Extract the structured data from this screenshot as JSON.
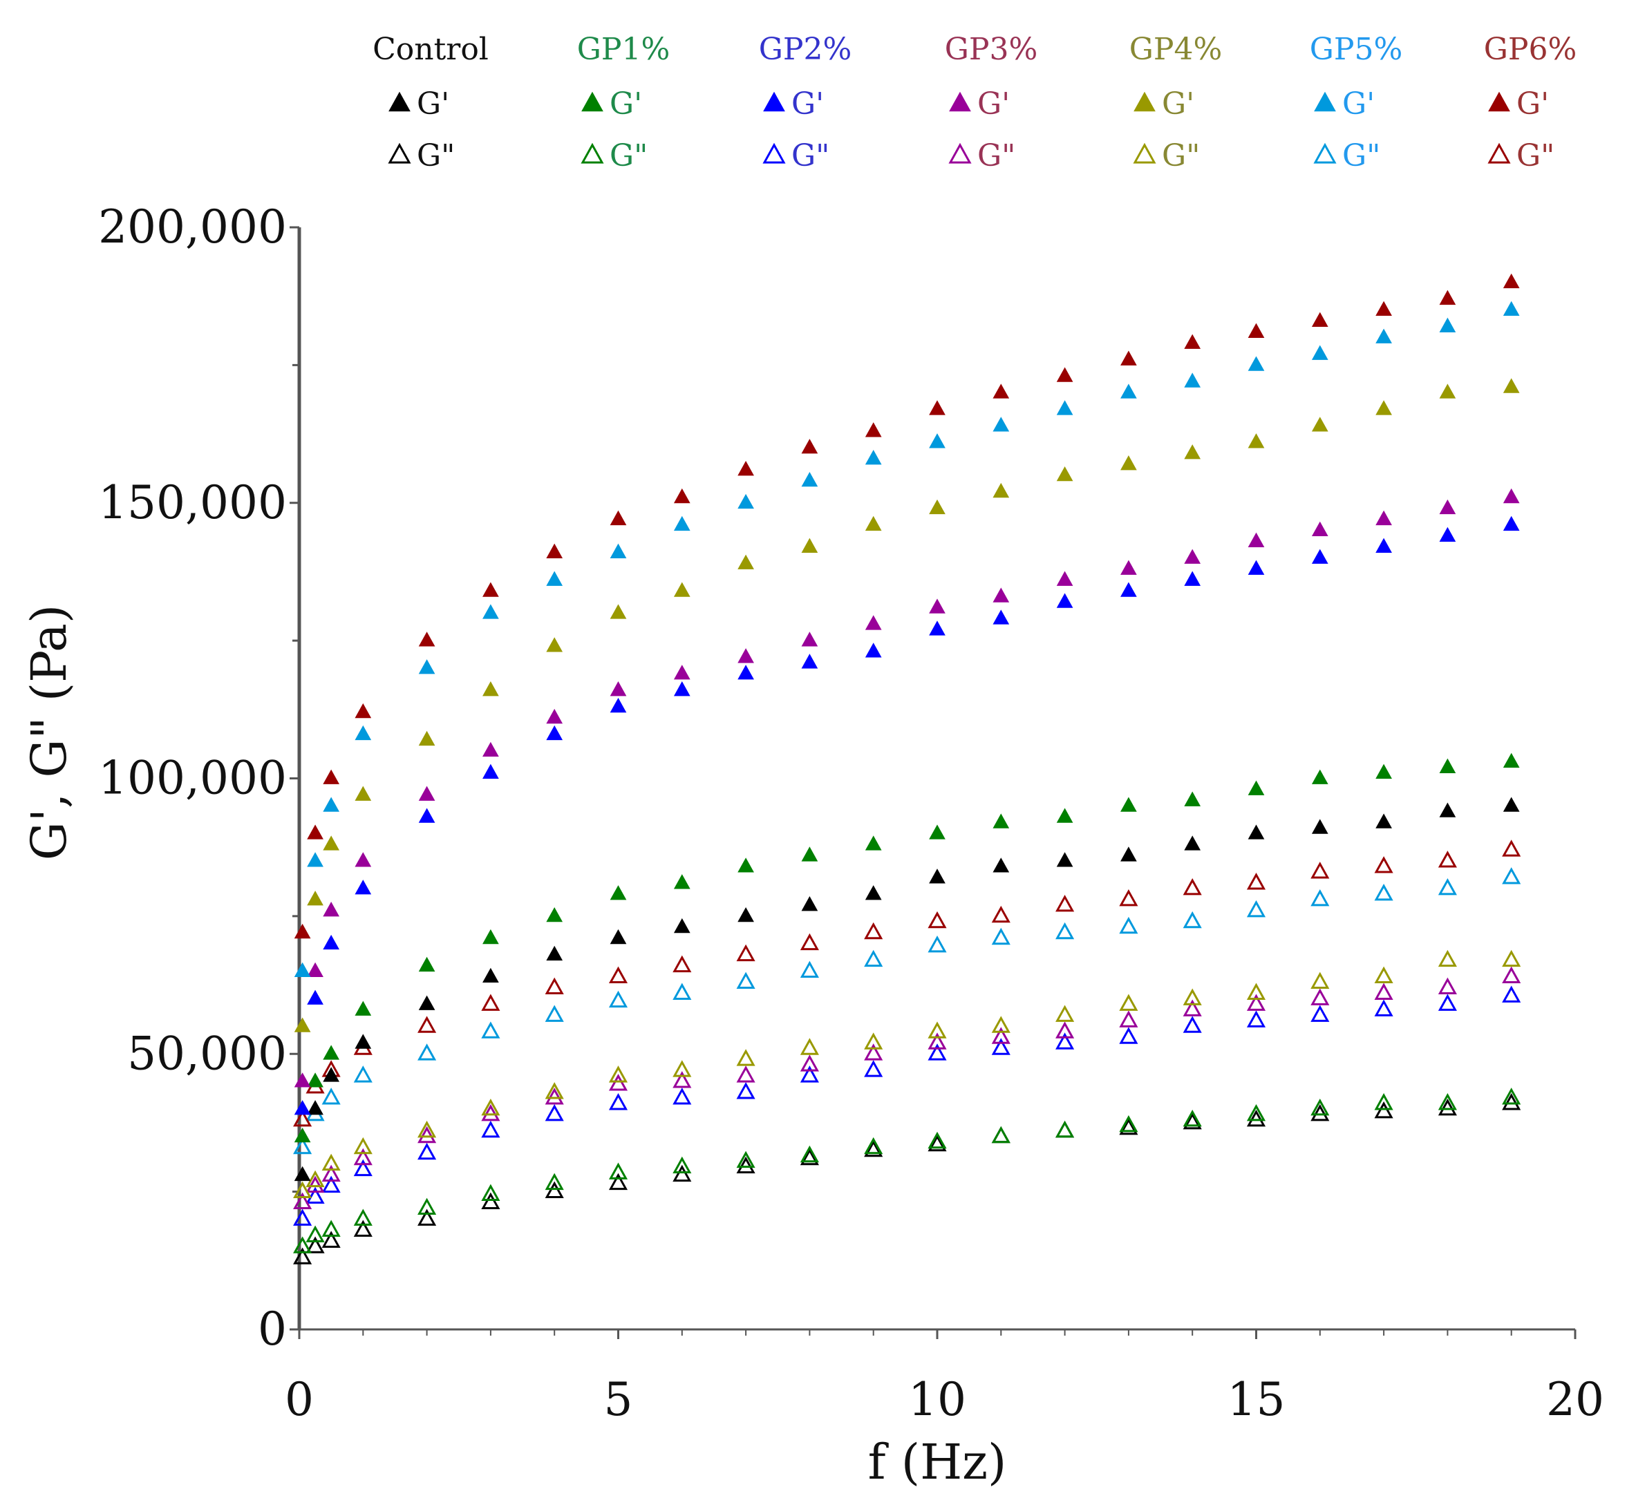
{
  "chart_data": {
    "type": "scatter",
    "title": "",
    "xlabel": "f (Hz)",
    "ylabel": "G', G\" (Pa)",
    "xlim": [
      0,
      20
    ],
    "ylim": [
      0,
      200000
    ],
    "x_ticks": [
      0,
      5,
      10,
      15,
      20
    ],
    "x_tick_labels": [
      "0",
      "5",
      "10",
      "15",
      "20"
    ],
    "y_ticks": [
      0,
      50000,
      100000,
      150000,
      200000
    ],
    "y_tick_labels": [
      "0",
      "50,000",
      "100,000",
      "150,000",
      "200,000"
    ],
    "grid": false,
    "legend_position": "top",
    "x": [
      0.05,
      0.25,
      0.5,
      1,
      2,
      3,
      4,
      5,
      6,
      7,
      8,
      9,
      10,
      11,
      12,
      13,
      14,
      15,
      16,
      17,
      18,
      19
    ],
    "value_scale": 1000,
    "groups": [
      {
        "name": "Control",
        "color": "#000000",
        "text_color": "#111111",
        "G1_label": "G'",
        "G2_label": "G\"",
        "G1": [
          28,
          40,
          46,
          52,
          59,
          64,
          68,
          71,
          73,
          75,
          77,
          79,
          82,
          84,
          85,
          86,
          88,
          90,
          91,
          92,
          94,
          95
        ],
        "G2": [
          13,
          15,
          16,
          18,
          20,
          23,
          25,
          26.5,
          28,
          29.5,
          31,
          32.5,
          33.5,
          35,
          36,
          36.5,
          37.5,
          38,
          39,
          39.5,
          40,
          41
        ]
      },
      {
        "name": "GP1%",
        "color": "#008000",
        "text_color": "#1e8a4a",
        "G1_label": "G'",
        "G2_label": "G\"",
        "G1": [
          35,
          45,
          50,
          58,
          66,
          71,
          75,
          79,
          81,
          84,
          86,
          88,
          90,
          92,
          93,
          95,
          96,
          98,
          100,
          101,
          102,
          103
        ],
        "G2": [
          15,
          17,
          18,
          20,
          22,
          24.5,
          26.5,
          28.4,
          29.5,
          30.5,
          31.5,
          33,
          34,
          35,
          36,
          37,
          38,
          39,
          40,
          41,
          41,
          42
        ]
      },
      {
        "name": "GP2%",
        "color": "#0000ff",
        "text_color": "#3333cc",
        "G1_label": "G'",
        "G2_label": "G\"",
        "G1": [
          40,
          60,
          70,
          80,
          93,
          101,
          108,
          113,
          116,
          119,
          121,
          123,
          127,
          129,
          132,
          134,
          136,
          138,
          140,
          142,
          144,
          146
        ],
        "G2": [
          20,
          24,
          26,
          29,
          32,
          36,
          39,
          41,
          42,
          43,
          46,
          47,
          50,
          51,
          52,
          53,
          55,
          56,
          57,
          58,
          59,
          60.5
        ]
      },
      {
        "name": "GP3%",
        "color": "#990099",
        "text_color": "#993355",
        "G1_label": "G'",
        "G2_label": "G\"",
        "G1": [
          45,
          65,
          76,
          85,
          97,
          105,
          111,
          116,
          119,
          122,
          125,
          128,
          131,
          133,
          136,
          138,
          140,
          143,
          145,
          147,
          149,
          151
        ],
        "G2": [
          23,
          26,
          28,
          31,
          35,
          39,
          42,
          44.5,
          45,
          46,
          48,
          50,
          52,
          53,
          54,
          56,
          58,
          59,
          60,
          61,
          62,
          64
        ]
      },
      {
        "name": "GP4%",
        "color": "#999900",
        "text_color": "#888833",
        "G1_label": "G'",
        "G2_label": "G\"",
        "G1": [
          55,
          78,
          88,
          97,
          107,
          116,
          124,
          130,
          134,
          139,
          142,
          146,
          149,
          152,
          155,
          157,
          159,
          161,
          164,
          167,
          170,
          171
        ],
        "G2": [
          25,
          27,
          30,
          33,
          36,
          40,
          43,
          46,
          47,
          49,
          51,
          52,
          54,
          55,
          57,
          59,
          60,
          61,
          63,
          64,
          67,
          67
        ]
      },
      {
        "name": "GP5%",
        "color": "#0099dd",
        "text_color": "#2299ee",
        "G1_label": "G'",
        "G2_label": "G\"",
        "G1": [
          65,
          85,
          95,
          108,
          120,
          130,
          136,
          141,
          146,
          150,
          154,
          158,
          161,
          164,
          167,
          170,
          172,
          175,
          177,
          180,
          182,
          185
        ],
        "G2": [
          33,
          39,
          42,
          46,
          50,
          54,
          57,
          59.6,
          61,
          63,
          65,
          67,
          69.6,
          71,
          72,
          73,
          74,
          76,
          78,
          79,
          80,
          82
        ]
      },
      {
        "name": "GP6%",
        "color": "#990000",
        "text_color": "#993333",
        "G1_label": "G'",
        "G2_label": "G\"",
        "G1": [
          72,
          90,
          100,
          112,
          125,
          134,
          141,
          147,
          151,
          156,
          160,
          163,
          167,
          170,
          173,
          176,
          179,
          181,
          183,
          185,
          187,
          190
        ],
        "G2": [
          38,
          44,
          47,
          51,
          55,
          59,
          62,
          64,
          66,
          68,
          70,
          72,
          74,
          75,
          77,
          78,
          80,
          81,
          83,
          84,
          85,
          87
        ]
      }
    ]
  }
}
